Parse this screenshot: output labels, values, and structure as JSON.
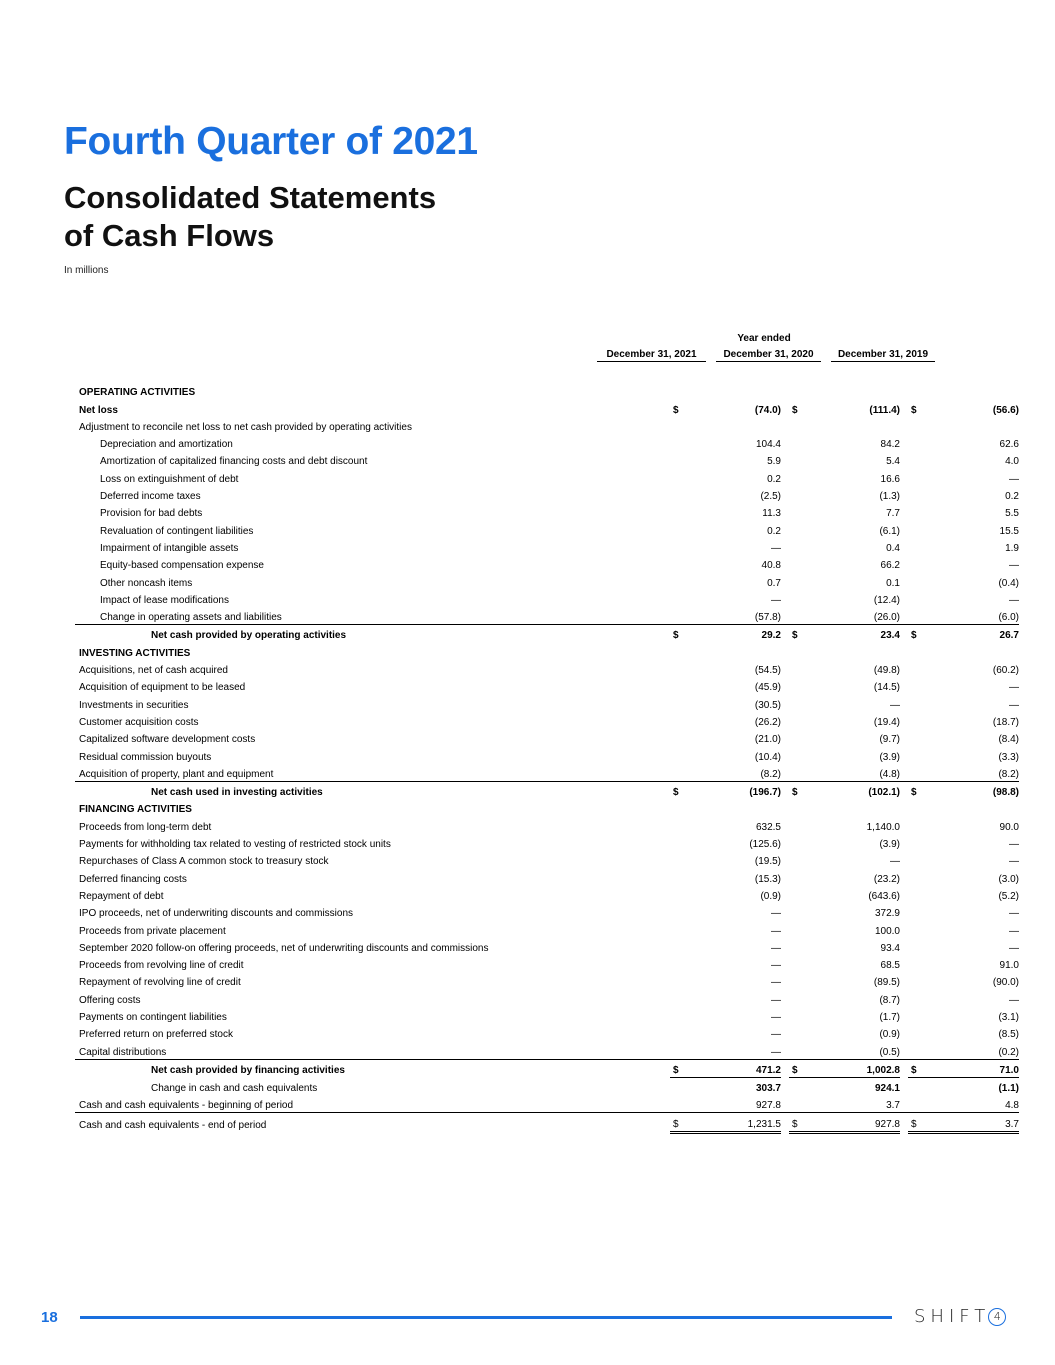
{
  "header": {
    "title": "Fourth Quarter of 2021",
    "subtitle_line1": "Consolidated Statements",
    "subtitle_line2": "of Cash Flows",
    "units": "In millions"
  },
  "table": {
    "period_label": "Year ended",
    "columns": [
      "December 31, 2021",
      "December 31, 2020",
      "December 31, 2019"
    ],
    "rows": [
      {
        "label": "OPERATING ACTIVITIES",
        "style": "section",
        "values": []
      },
      {
        "label": "Net loss",
        "style": "bold",
        "dollar": true,
        "values": [
          "(74.0)",
          "(111.4)",
          "(56.6)"
        ]
      },
      {
        "label": "Adjustment to reconcile net loss to net cash provided by operating activities",
        "style": "",
        "values": []
      },
      {
        "label": "Depreciation and amortization",
        "style": "indent",
        "values": [
          "104.4",
          "84.2",
          "62.6"
        ]
      },
      {
        "label": "Amortization of capitalized financing costs and debt discount",
        "style": "indent",
        "values": [
          "5.9",
          "5.4",
          "4.0"
        ]
      },
      {
        "label": "Loss on extinguishment of debt",
        "style": "indent",
        "values": [
          "0.2",
          "16.6",
          "—"
        ]
      },
      {
        "label": "Deferred income taxes",
        "style": "indent",
        "values": [
          "(2.5)",
          "(1.3)",
          "0.2"
        ]
      },
      {
        "label": "Provision for bad debts",
        "style": "indent",
        "values": [
          "11.3",
          "7.7",
          "5.5"
        ]
      },
      {
        "label": "Revaluation of contingent liabilities",
        "style": "indent",
        "values": [
          "0.2",
          "(6.1)",
          "15.5"
        ]
      },
      {
        "label": "Impairment of intangible assets",
        "style": "indent",
        "values": [
          "—",
          "0.4",
          "1.9"
        ]
      },
      {
        "label": "Equity-based compensation expense",
        "style": "indent",
        "values": [
          "40.8",
          "66.2",
          "—"
        ]
      },
      {
        "label": "Other noncash items",
        "style": "indent",
        "values": [
          "0.7",
          "0.1",
          "(0.4)"
        ]
      },
      {
        "label": "Impact of lease modifications",
        "style": "indent",
        "values": [
          "—",
          "(12.4)",
          "—"
        ]
      },
      {
        "label": "Change in operating assets and liabilities",
        "style": "indent line",
        "values": [
          "(57.8)",
          "(26.0)",
          "(6.0)"
        ]
      },
      {
        "label": "Net cash provided by operating activities",
        "style": "total",
        "dollar": true,
        "values": [
          "29.2",
          "23.4",
          "26.7"
        ]
      },
      {
        "label": "INVESTING ACTIVITIES",
        "style": "section",
        "values": []
      },
      {
        "label": "Acquisitions, net of cash acquired",
        "style": "",
        "values": [
          "(54.5)",
          "(49.8)",
          "(60.2)"
        ]
      },
      {
        "label": "Acquisition of equipment to be leased",
        "style": "",
        "values": [
          "(45.9)",
          "(14.5)",
          "—"
        ]
      },
      {
        "label": "Investments in securities",
        "style": "",
        "values": [
          "(30.5)",
          "—",
          "—"
        ]
      },
      {
        "label": "Customer acquisition costs",
        "style": "",
        "values": [
          "(26.2)",
          "(19.4)",
          "(18.7)"
        ]
      },
      {
        "label": "Capitalized software development costs",
        "style": "",
        "values": [
          "(21.0)",
          "(9.7)",
          "(8.4)"
        ]
      },
      {
        "label": "Residual commission buyouts",
        "style": "",
        "values": [
          "(10.4)",
          "(3.9)",
          "(3.3)"
        ]
      },
      {
        "label": "Acquisition of property, plant and equipment",
        "style": "line",
        "values": [
          "(8.2)",
          "(4.8)",
          "(8.2)"
        ]
      },
      {
        "label": "Net cash used in investing activities",
        "style": "total",
        "dollar": true,
        "values": [
          "(196.7)",
          "(102.1)",
          "(98.8)"
        ]
      },
      {
        "label": "FINANCING ACTIVITIES",
        "style": "section",
        "values": []
      },
      {
        "label": "Proceeds from long-term debt",
        "style": "",
        "values": [
          "632.5",
          "1,140.0",
          "90.0"
        ]
      },
      {
        "label": "Payments for withholding tax related to vesting of restricted stock units",
        "style": "",
        "values": [
          "(125.6)",
          "(3.9)",
          "—"
        ]
      },
      {
        "label": "Repurchases of Class A common stock to treasury stock",
        "style": "",
        "values": [
          "(19.5)",
          "—",
          "—"
        ]
      },
      {
        "label": "Deferred financing costs",
        "style": "",
        "values": [
          "(15.3)",
          "(23.2)",
          "(3.0)"
        ]
      },
      {
        "label": "Repayment of debt",
        "style": "",
        "values": [
          "(0.9)",
          "(643.6)",
          "(5.2)"
        ]
      },
      {
        "label": "IPO proceeds, net of underwriting discounts and commissions",
        "style": "",
        "values": [
          "—",
          "372.9",
          "—"
        ]
      },
      {
        "label": "Proceeds from private placement",
        "style": "",
        "values": [
          "—",
          "100.0",
          "—"
        ]
      },
      {
        "label": "September 2020 follow-on offering proceeds, net of underwriting discounts and commissions",
        "style": "",
        "values": [
          "—",
          "93.4",
          "—"
        ]
      },
      {
        "label": "Proceeds from revolving line of credit",
        "style": "",
        "values": [
          "—",
          "68.5",
          "91.0"
        ]
      },
      {
        "label": "Repayment of revolving line of credit",
        "style": "",
        "values": [
          "—",
          "(89.5)",
          "(90.0)"
        ]
      },
      {
        "label": "Offering costs",
        "style": "",
        "values": [
          "—",
          "(8.7)",
          "—"
        ]
      },
      {
        "label": "Payments on contingent liabilities",
        "style": "",
        "values": [
          "—",
          "(1.7)",
          "(3.1)"
        ]
      },
      {
        "label": "Preferred return on preferred stock",
        "style": "",
        "values": [
          "—",
          "(0.9)",
          "(8.5)"
        ]
      },
      {
        "label": "Capital distributions",
        "style": "line",
        "values": [
          "—",
          "(0.5)",
          "(0.2)"
        ]
      },
      {
        "label": "Net cash provided by financing activities",
        "style": "total uval",
        "dollar": true,
        "values": [
          "471.2",
          "1,002.8",
          "71.0"
        ]
      },
      {
        "label": "Change in cash and cash equivalents",
        "style": "totalplain boldval",
        "values": [
          "303.7",
          "924.1",
          "(1.1)"
        ]
      },
      {
        "label": "Cash and cash equivalents - beginning of period",
        "style": "line",
        "values": [
          "927.8",
          "3.7",
          "4.8"
        ]
      },
      {
        "label": "Cash and cash equivalents - end of period",
        "style": "dbl",
        "dollar": true,
        "values": [
          "1,231.5",
          "927.8",
          "3.7"
        ]
      }
    ],
    "currency_symbol": "$"
  },
  "footer": {
    "page_number": "18",
    "logo_text": "SHIFT",
    "logo_mark": "4",
    "accent_color": "#1a6fde"
  }
}
